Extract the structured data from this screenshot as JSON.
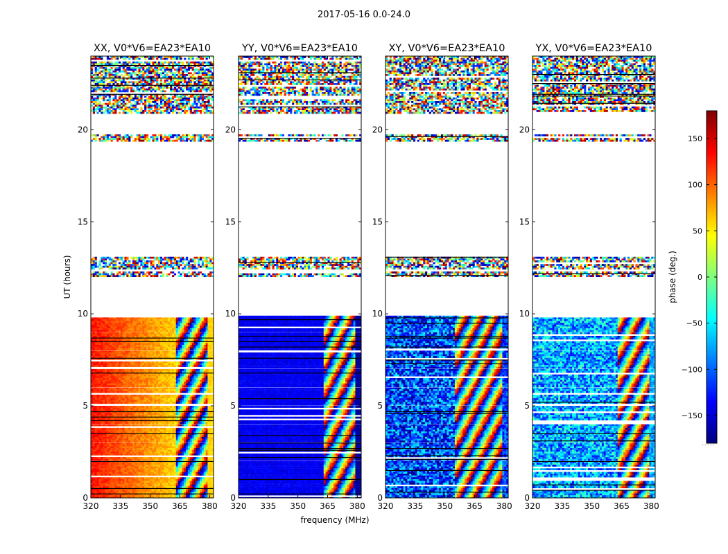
{
  "figure": {
    "suptitle": "2017-05-16 0.0-24.0",
    "footnote": "....."
  },
  "chart_data": {
    "type": "heatmap",
    "title": "2017-05-16 0.0-24.0",
    "xlabel": "frequency (MHz)",
    "ylabel": "UT (hours)",
    "xlim": [
      320,
      382
    ],
    "ylim": [
      0,
      24
    ],
    "xticks": [
      320,
      335,
      350,
      365,
      380
    ],
    "yticks": [
      0,
      5,
      10,
      15,
      20
    ],
    "colorbar": {
      "label": "phase (deg.)",
      "range": [
        -180,
        180
      ],
      "ticks": [
        -150,
        -100,
        -50,
        0,
        50,
        100,
        150
      ],
      "colormap": "jet",
      "stops": [
        "#00007f",
        "#0000ff",
        "#007fff",
        "#00ffff",
        "#7fff7f",
        "#ffff00",
        "#ff7f00",
        "#ff0000",
        "#7f0000"
      ]
    },
    "data_hours": [
      [
        0,
        2.0
      ],
      [
        2.1,
        3.0
      ],
      [
        3.1,
        4.0
      ],
      [
        4.1,
        5.0
      ],
      [
        5.1,
        6.0
      ],
      [
        6.1,
        7.0
      ],
      [
        7.1,
        8.0
      ],
      [
        8.1,
        9.0
      ],
      [
        9.1,
        9.9
      ],
      [
        12.05,
        12.3
      ],
      [
        12.5,
        13.1
      ],
      [
        19.4,
        19.75
      ],
      [
        20.9,
        24.0
      ]
    ],
    "panels": [
      {
        "title": "XX, V0*V6=EA23*EA10",
        "pol": "XX",
        "base_phase_deg": 130,
        "phase_slope_deg_per_mhz": -1.6,
        "smooth_until_mhz": 363,
        "scatter_deg": 15,
        "note": "smooth orange-red phase below ~363 MHz, fringes above"
      },
      {
        "title": "YY, V0*V6=EA23*EA10",
        "pol": "YY",
        "base_phase_deg": -140,
        "phase_slope_deg_per_mhz": 0,
        "smooth_until_mhz": 363,
        "scatter_deg": 10,
        "note": "uniform blue phase below ~363 MHz, fringes above"
      },
      {
        "title": "XY, V0*V6=EA23*EA10",
        "pol": "XY",
        "base_phase_deg": -110,
        "phase_slope_deg_per_mhz": 0,
        "smooth_until_mhz": 355,
        "scatter_deg": 70,
        "note": "noisy blue phase with fringes above ~355 MHz"
      },
      {
        "title": "YX, V0*V6=EA23*EA10",
        "pol": "YX",
        "base_phase_deg": -75,
        "phase_slope_deg_per_mhz": 0,
        "smooth_until_mhz": 363,
        "scatter_deg": 60,
        "note": "noisy cyan-blue phase with fringes above ~363 MHz"
      }
    ]
  }
}
